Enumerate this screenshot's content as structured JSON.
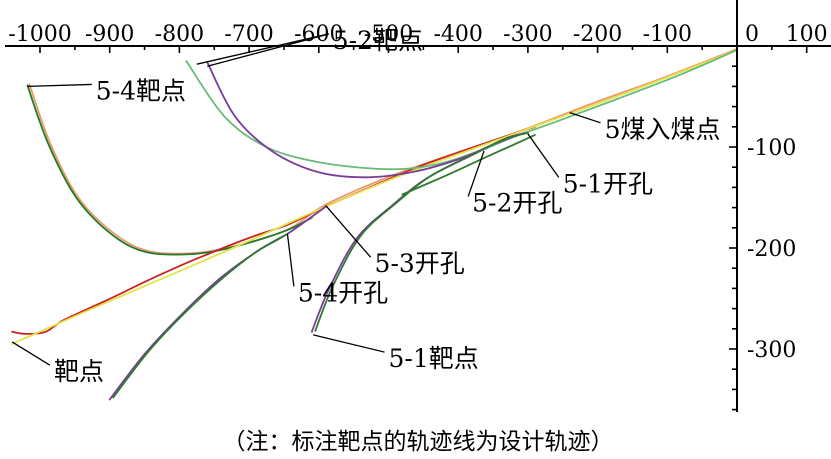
{
  "chart_data": {
    "type": "line",
    "title": "",
    "xlabel": "",
    "ylabel": "",
    "xlim": [
      -1040,
      100
    ],
    "ylim": [
      -350,
      30
    ],
    "x_ticks": [
      -1000,
      -900,
      -800,
      -700,
      -600,
      -500,
      -400,
      -300,
      -200,
      -100,
      0,
      100
    ],
    "y_ticks": [
      -100,
      -200,
      -300
    ],
    "grid": false,
    "caption": "（注：标注靶点的轨迹线为设计轨迹）",
    "annotations": [
      {
        "label": "5-2靶点",
        "x": -580,
        "y": 6,
        "targets": [
          [
            -775,
            -18
          ],
          [
            -760,
            -20
          ]
        ]
      },
      {
        "label": "5-4靶点",
        "x": -920,
        "y": -44,
        "targets": [
          [
            -1018,
            -40
          ]
        ]
      },
      {
        "label": "5煤入煤点",
        "x": -190,
        "y": -82,
        "targets": [
          [
            -240,
            -66
          ]
        ]
      },
      {
        "label": "5-2开孔",
        "x": -380,
        "y": -155,
        "targets": [
          [
            -363,
            -104
          ]
        ]
      },
      {
        "label": "5-1开孔",
        "x": -250,
        "y": -136,
        "targets": [
          [
            -300,
            -87
          ]
        ]
      },
      {
        "label": "5-3开孔",
        "x": -520,
        "y": -215,
        "targets": [
          [
            -590,
            -158
          ]
        ]
      },
      {
        "label": "5-4开孔",
        "x": -630,
        "y": -244,
        "targets": [
          [
            -645,
            -186
          ]
        ]
      },
      {
        "label": "5-1靶点",
        "x": -500,
        "y": -309,
        "targets": [
          [
            -608,
            -286
          ]
        ]
      },
      {
        "label": "靶点",
        "x": -980,
        "y": -322,
        "targets": [
          [
            -1040,
            -293
          ]
        ]
      }
    ],
    "series": [
      {
        "color": "#ee9a68",
        "points": [
          [
            -1015,
            -38
          ],
          [
            -985,
            -97
          ],
          [
            -945,
            -150
          ],
          [
            -895,
            -185
          ],
          [
            -845,
            -203
          ],
          [
            -780,
            -205
          ],
          [
            -720,
            -198
          ],
          [
            -645,
            -182
          ],
          [
            -590,
            -157
          ],
          [
            -490,
            -127
          ],
          [
            -390,
            -103
          ],
          [
            -310,
            -84
          ],
          [
            -200,
            -55
          ],
          [
            -100,
            -30
          ],
          [
            0,
            -3
          ]
        ]
      },
      {
        "color": "#207a2c",
        "points": [
          [
            -1018,
            -39
          ],
          [
            -988,
            -97
          ],
          [
            -948,
            -150
          ],
          [
            -898,
            -186
          ],
          [
            -848,
            -204
          ],
          [
            -782,
            -206
          ],
          [
            -722,
            -199
          ],
          [
            -648,
            -183
          ],
          [
            -610,
            -170
          ]
        ]
      },
      {
        "color": "#cc2222",
        "points": [
          [
            -1040,
            -283
          ],
          [
            -1020,
            -285
          ],
          [
            -992,
            -283
          ],
          [
            -965,
            -271
          ],
          [
            -905,
            -252
          ],
          [
            -845,
            -232
          ],
          [
            -780,
            -212
          ],
          [
            -700,
            -190
          ],
          [
            -645,
            -177
          ],
          [
            -590,
            -159
          ],
          [
            -510,
            -135
          ],
          [
            -455,
            -119
          ],
          [
            -390,
            -103
          ],
          [
            -330,
            -89
          ],
          [
            -290,
            -80
          ]
        ]
      },
      {
        "color": "#e3e34a",
        "points": [
          [
            -1040,
            -295
          ],
          [
            -925,
            -260
          ],
          [
            -800,
            -223
          ],
          [
            -700,
            -193
          ],
          [
            -600,
            -162
          ],
          [
            -500,
            -133
          ],
          [
            -400,
            -107
          ],
          [
            -300,
            -82
          ],
          [
            -200,
            -57
          ],
          [
            -100,
            -31
          ],
          [
            0,
            -4
          ]
        ]
      },
      {
        "color": "#66bb77",
        "points": [
          [
            -790,
            -15
          ],
          [
            -735,
            -70
          ],
          [
            -675,
            -100
          ],
          [
            -600,
            -115
          ],
          [
            -500,
            -122
          ],
          [
            -430,
            -117
          ],
          [
            -370,
            -104
          ],
          [
            -320,
            -90
          ],
          [
            -260,
            -75
          ],
          [
            -170,
            -52
          ],
          [
            -80,
            -28
          ],
          [
            0,
            -4
          ]
        ]
      },
      {
        "color": "#7a3d9a",
        "points": [
          [
            -760,
            -16
          ],
          [
            -720,
            -70
          ],
          [
            -665,
            -105
          ],
          [
            -600,
            -125
          ],
          [
            -530,
            -130
          ],
          [
            -460,
            -124
          ],
          [
            -395,
            -111
          ],
          [
            -345,
            -96
          ],
          [
            -305,
            -86
          ]
        ]
      },
      {
        "color": "#7a3d9a",
        "points": [
          [
            -610,
            -283
          ],
          [
            -585,
            -240
          ],
          [
            -545,
            -190
          ],
          [
            -495,
            -158
          ],
          [
            -445,
            -131
          ],
          [
            -380,
            -108
          ],
          [
            -330,
            -91
          ],
          [
            -300,
            -86
          ]
        ]
      },
      {
        "color": "#2f7a2f",
        "points": [
          [
            -605,
            -282
          ],
          [
            -580,
            -238
          ],
          [
            -540,
            -188
          ],
          [
            -490,
            -156
          ],
          [
            -440,
            -129
          ],
          [
            -378,
            -107
          ],
          [
            -333,
            -92
          ],
          [
            -300,
            -86
          ]
        ]
      },
      {
        "color": "#2f7a2f",
        "points": [
          [
            -480,
            -147
          ],
          [
            -420,
            -129
          ],
          [
            -360,
            -110
          ],
          [
            -315,
            -96
          ],
          [
            -290,
            -88
          ]
        ]
      },
      {
        "color": "#7a3d9a",
        "points": [
          [
            -900,
            -350
          ],
          [
            -850,
            -305
          ],
          [
            -800,
            -268
          ],
          [
            -745,
            -232
          ],
          [
            -690,
            -204
          ],
          [
            -645,
            -186
          ],
          [
            -590,
            -159
          ]
        ]
      },
      {
        "color": "#2f7a2f",
        "points": [
          [
            -895,
            -348
          ],
          [
            -845,
            -303
          ],
          [
            -795,
            -266
          ],
          [
            -740,
            -231
          ],
          [
            -688,
            -203
          ],
          [
            -645,
            -186
          ]
        ]
      }
    ]
  }
}
